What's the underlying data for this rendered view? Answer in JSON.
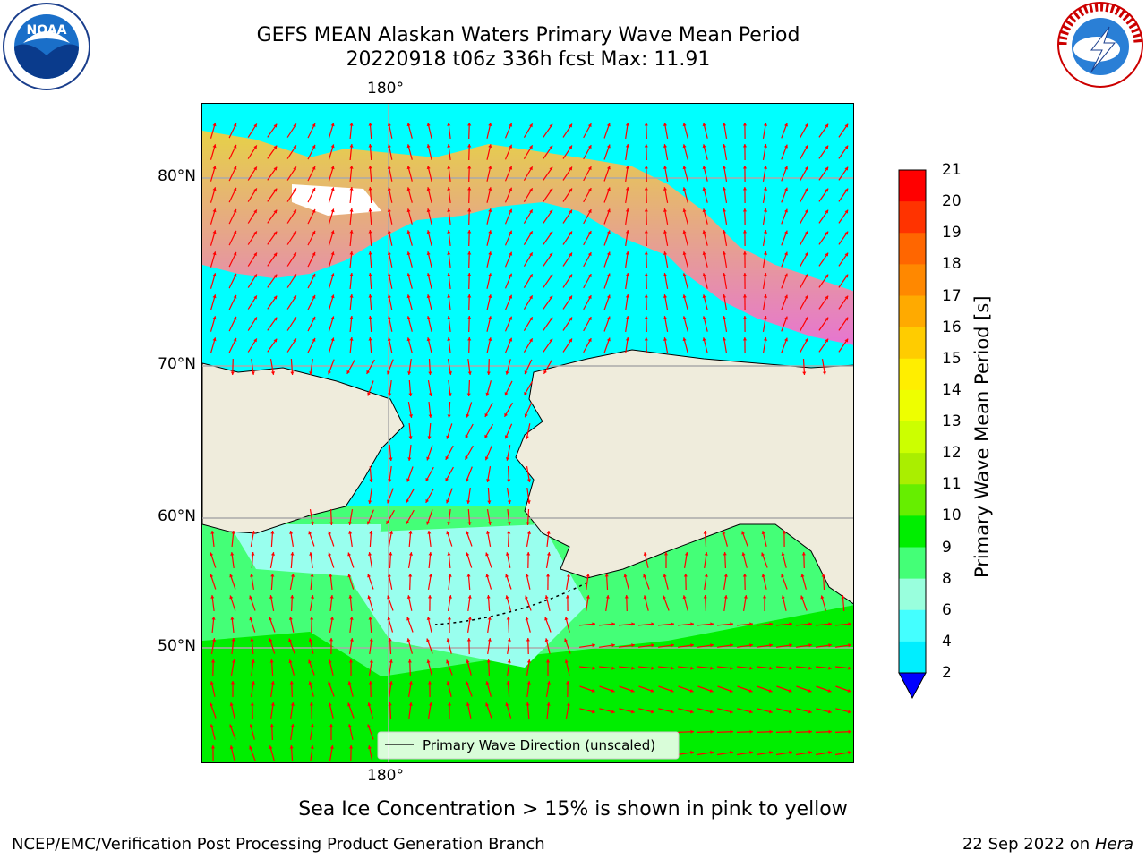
{
  "header": {
    "title_line1": "GEFS MEAN Alaskan Waters Primary Wave Mean Period",
    "title_line2": "20220918 t06z 336h fcst   Max: 11.91"
  },
  "logos": {
    "left": {
      "name": "noaa-logo",
      "text": "NOAA"
    },
    "right": {
      "name": "nws-logo",
      "text": "NATIONAL WEATHER SERVICE"
    }
  },
  "map": {
    "lon_labels": [
      "180°",
      "180°"
    ],
    "lat_labels": [
      "80°N",
      "70°N",
      "60°N",
      "50°N"
    ],
    "legend_label": "Primary Wave Direction (unscaled)",
    "land_color": "#efecdc",
    "arrow_color": "#ff0000"
  },
  "colorbar": {
    "title": "Primary Wave Mean Period [s]",
    "ticks": [
      "21",
      "20",
      "19",
      "18",
      "17",
      "16",
      "15",
      "14",
      "13",
      "12",
      "11",
      "10",
      "9",
      "8",
      "6",
      "4",
      "2"
    ],
    "colors": [
      "#ff0000",
      "#ff3300",
      "#ff6600",
      "#ff8800",
      "#ffaa00",
      "#ffcc00",
      "#ffee00",
      "#eeff00",
      "#ccff00",
      "#aaee00",
      "#66ee00",
      "#00ee00",
      "#44ff77",
      "#99ffdd",
      "#44ffff",
      "#00eeff",
      "#0088ff"
    ],
    "extend_color": "#0000ff"
  },
  "caption": "Sea Ice Concentration > 15% is shown in pink to yellow",
  "footer": {
    "left": "NCEP/EMC/Verification Post Processing Product Generation Branch",
    "date": "22 Sep 2022 on",
    "host": "Hera"
  }
}
